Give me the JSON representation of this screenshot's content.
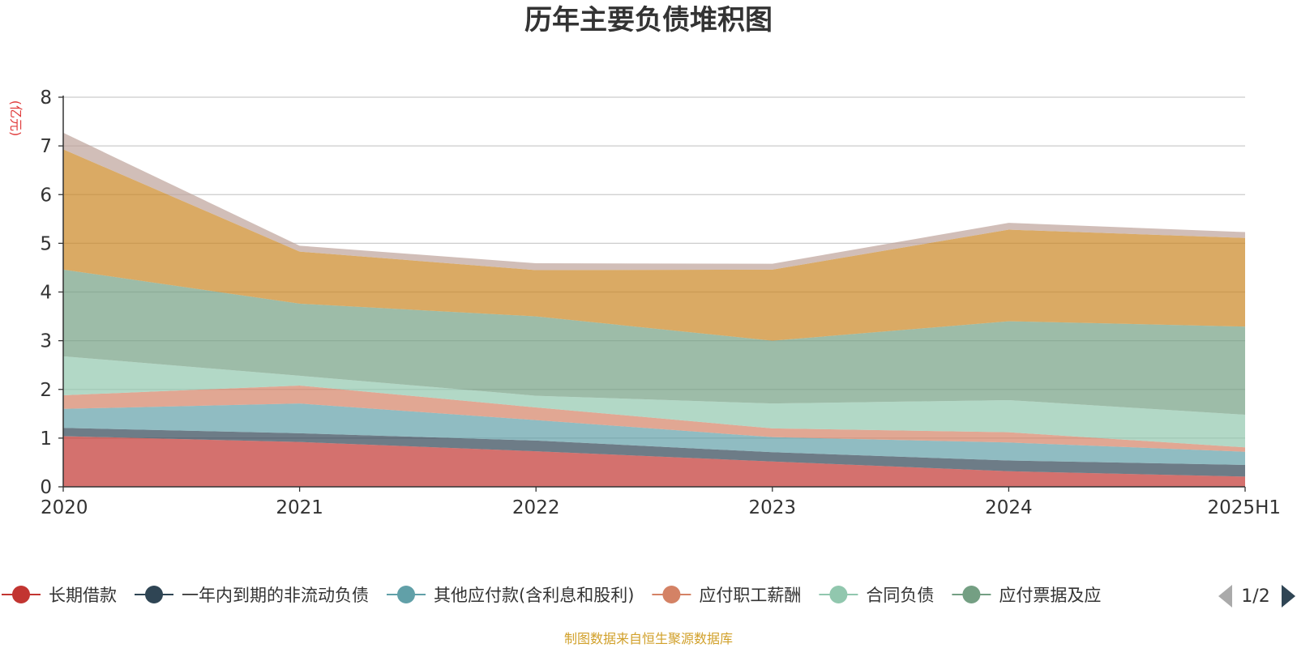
{
  "chart_data": {
    "type": "area",
    "stacked": true,
    "title": "历年主要负债堆积图",
    "unit_label": "(亿元)",
    "ylabel": "",
    "xlabel": "",
    "ylim": [
      0,
      8
    ],
    "y_ticks": [
      "0",
      "1",
      "2",
      "3",
      "4",
      "5",
      "6",
      "7",
      "8"
    ],
    "grid": true,
    "categories": [
      "2020",
      "2021",
      "2022",
      "2023",
      "2024",
      "2025H1"
    ],
    "series": [
      {
        "name": "长期借款",
        "color": "#c23531",
        "values": [
          1.04,
          0.92,
          0.73,
          0.52,
          0.32,
          0.21
        ]
      },
      {
        "name": "一年内到期的非流动负债",
        "color": "#2f4554",
        "values": [
          0.17,
          0.18,
          0.22,
          0.19,
          0.22,
          0.24
        ]
      },
      {
        "name": "其他应付款(含利息和股利)",
        "color": "#61a0a8",
        "values": [
          0.39,
          0.61,
          0.42,
          0.31,
          0.37,
          0.27
        ]
      },
      {
        "name": "应付职工薪酬",
        "color": "#d48265",
        "values": [
          0.28,
          0.37,
          0.26,
          0.18,
          0.21,
          0.09
        ]
      },
      {
        "name": "合同负债",
        "color": "#91c7ae",
        "values": [
          0.8,
          0.2,
          0.24,
          0.51,
          0.66,
          0.67
        ]
      },
      {
        "name": "应付票据及应付账款",
        "color": "#749f83",
        "values": [
          1.78,
          1.48,
          1.63,
          1.29,
          1.62,
          1.81
        ]
      },
      {
        "name": "",
        "color": "#ca8622",
        "values": [
          2.47,
          1.07,
          0.95,
          1.46,
          1.88,
          1.82
        ]
      },
      {
        "name": "",
        "color": "#bda29a",
        "values": [
          0.34,
          0.12,
          0.14,
          0.12,
          0.14,
          0.12
        ]
      }
    ]
  },
  "legend": {
    "visible_items": [
      {
        "label": "长期借款",
        "color": "#c23531"
      },
      {
        "label": "一年内到期的非流动负债",
        "color": "#2f4554"
      },
      {
        "label": "其他应付款(含利息和股利)",
        "color": "#61a0a8"
      },
      {
        "label": "应付职工薪酬",
        "color": "#d48265"
      },
      {
        "label": "合同负债",
        "color": "#91c7ae"
      },
      {
        "label": "应付票据及应",
        "color": "#749f83"
      }
    ],
    "page_indicator": "1/2"
  },
  "source_note": "制图数据来自恒生聚源数据库"
}
